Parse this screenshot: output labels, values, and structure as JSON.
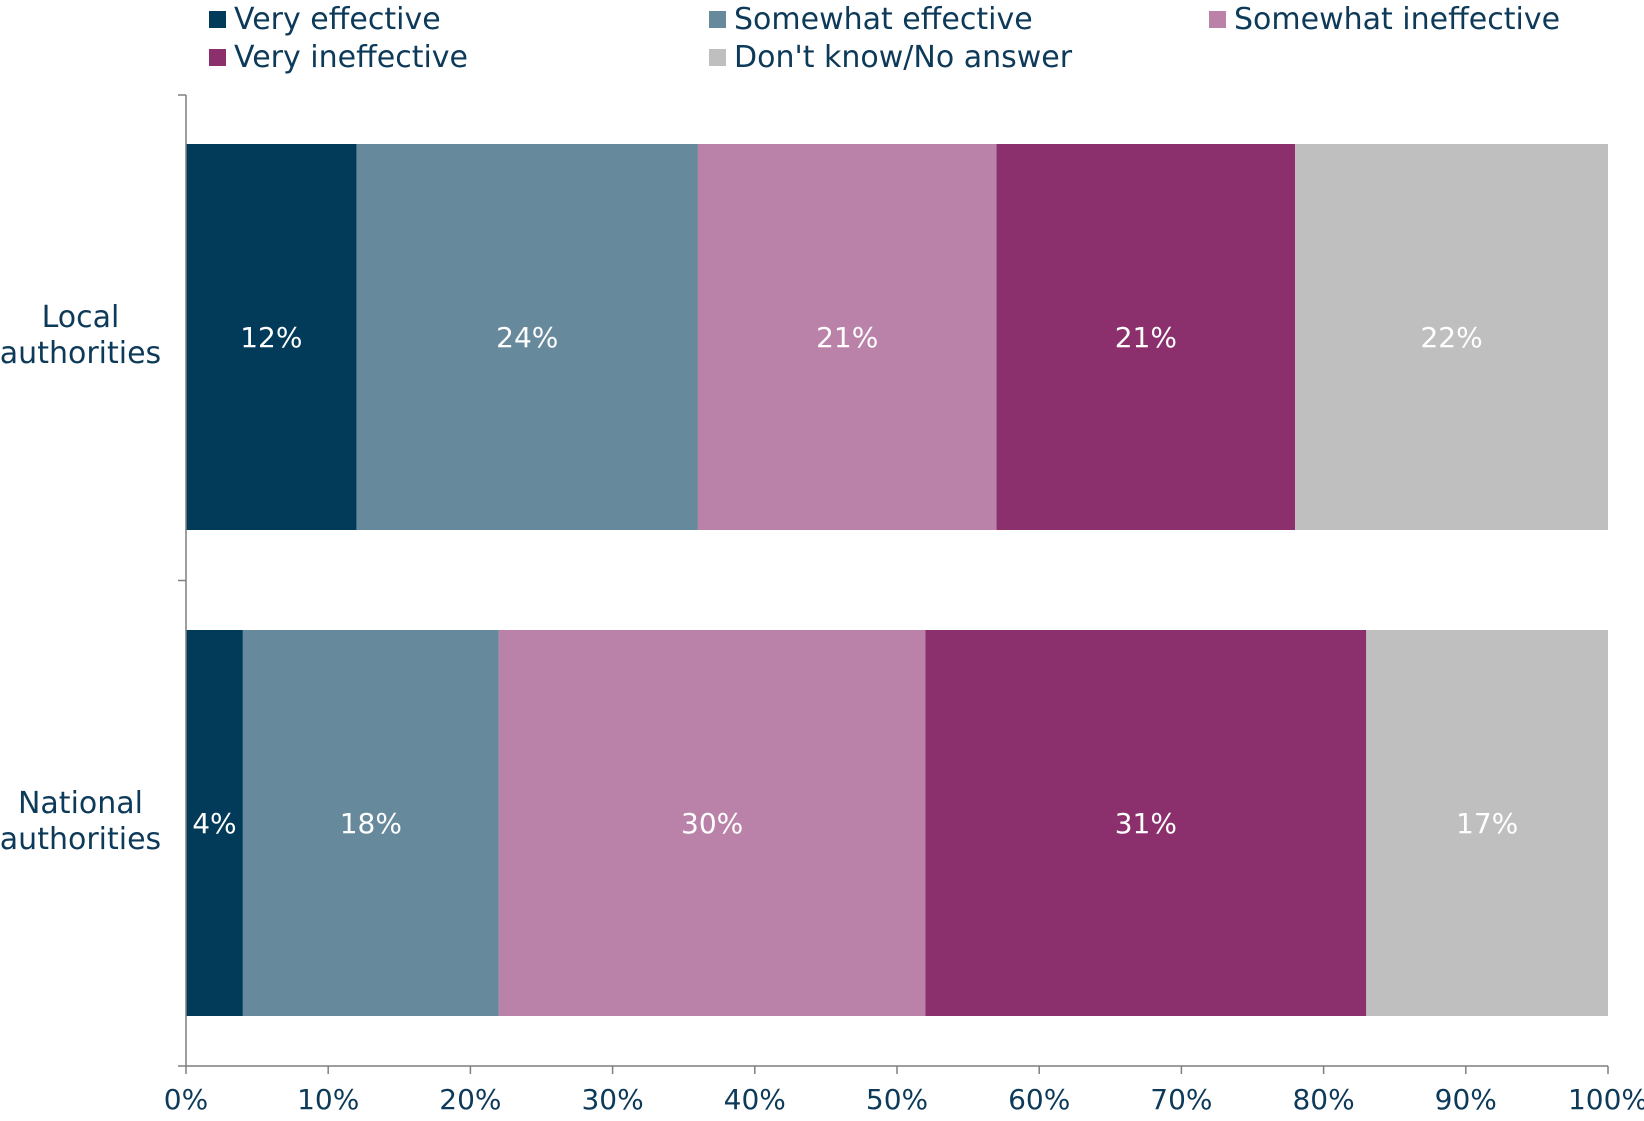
{
  "chart_data": {
    "type": "bar",
    "orientation": "horizontal",
    "stacked": true,
    "categories": [
      "Local authorities",
      "National authorities"
    ],
    "category_lines": [
      [
        "Local",
        "authorities"
      ],
      [
        "National",
        "authorities"
      ]
    ],
    "series": [
      {
        "name": "Very effective",
        "color": "#023a5a",
        "values": [
          12,
          4
        ],
        "labels": [
          "12%",
          "4%"
        ]
      },
      {
        "name": "Somewhat effective",
        "color": "#66899c",
        "values": [
          24,
          18
        ],
        "labels": [
          "24%",
          "18%"
        ]
      },
      {
        "name": "Somewhat ineffective",
        "color": "#ba82a8",
        "values": [
          21,
          30
        ],
        "labels": [
          "21%",
          "30%"
        ]
      },
      {
        "name": "Very ineffective",
        "color": "#8b306c",
        "values": [
          21,
          31
        ],
        "labels": [
          "21%",
          "31%"
        ]
      },
      {
        "name": "Don't know/No answer",
        "color": "#bfbfbf",
        "values": [
          22,
          17
        ],
        "labels": [
          "22%",
          "17%"
        ]
      }
    ],
    "xlim": [
      0,
      100
    ],
    "xticks": [
      "0%",
      "10%",
      "20%",
      "30%",
      "40%",
      "50%",
      "60%",
      "70%",
      "80%",
      "90%",
      "100%"
    ],
    "legend_position": "top",
    "grid": false
  }
}
